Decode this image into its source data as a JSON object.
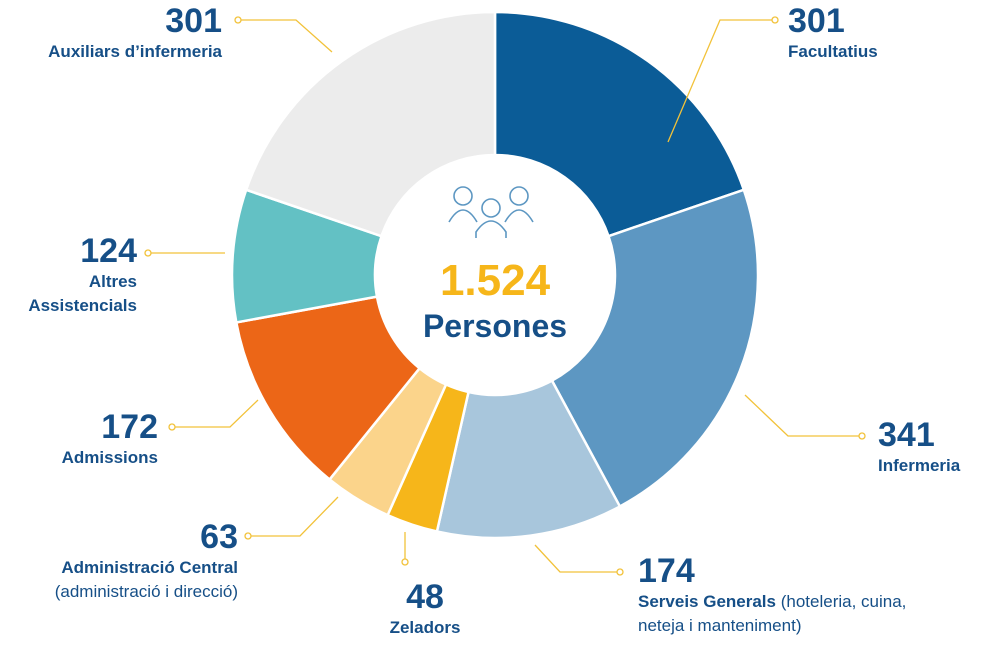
{
  "chart_data": {
    "type": "donut",
    "center": {
      "value": 1524,
      "label": "1.524"
    },
    "center_text": "Persones",
    "slices": [
      {
        "name": "Facultatius",
        "value": 301,
        "color": "#0b5c97"
      },
      {
        "name": "Infermeria",
        "value": 341,
        "color": "#5d97c2"
      },
      {
        "name": "Serveis Generals",
        "note": "(hoteleria, cuina, neteja i manteniment)",
        "value": 174,
        "color": "#a8c6dc"
      },
      {
        "name": "Zeladors",
        "value": 48,
        "color": "#f6b61a"
      },
      {
        "name": "Administració Central",
        "note": "(administració i direcció)",
        "value": 63,
        "color": "#fbd48b"
      },
      {
        "name": "Admissions",
        "value": 172,
        "color": "#ec6617"
      },
      {
        "name": "Altres Assistencials",
        "value": 124,
        "color": "#63c1c4"
      },
      {
        "name": "Auxiliars d’infermeria",
        "value": 301,
        "color": "#ececec"
      }
    ]
  }
}
